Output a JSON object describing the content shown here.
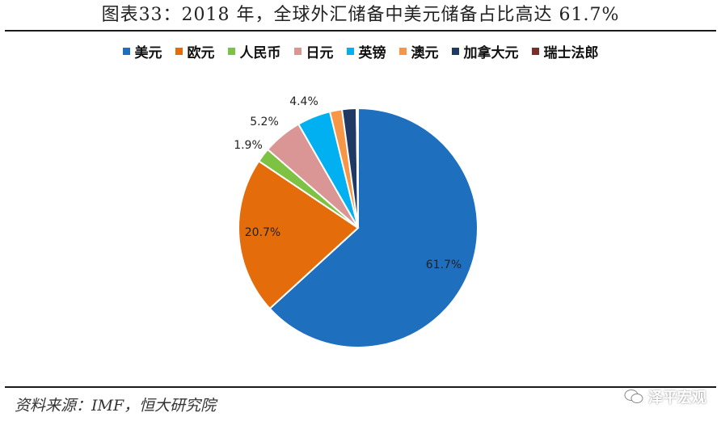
{
  "title": "图表33：2018 年，全球外汇储备中美元储备占比高达 61.7%",
  "source": "资料来源：IMF，恒大研究院",
  "watermark": "泽平宏观",
  "chart_data": {
    "type": "pie",
    "legend_position": "top",
    "slices": [
      {
        "name": "美元",
        "value": 61.7,
        "label": "61.7%",
        "color": "#1f6fbf"
      },
      {
        "name": "欧元",
        "value": 20.7,
        "label": "20.7%",
        "color": "#e46c0a"
      },
      {
        "name": "人民币",
        "value": 1.9,
        "label": "1.9%",
        "color": "#7dc242"
      },
      {
        "name": "日元",
        "value": 5.2,
        "label": "5.2%",
        "color": "#d99694"
      },
      {
        "name": "英镑",
        "value": 4.4,
        "label": "4.4%",
        "color": "#00b0f0"
      },
      {
        "name": "澳元",
        "value": 1.6,
        "label": "",
        "color": "#f79646"
      },
      {
        "name": "加拿大元",
        "value": 1.9,
        "label": "",
        "color": "#1f3864"
      },
      {
        "name": "瑞士法郎",
        "value": 0.2,
        "label": "",
        "color": "#7b2c2c"
      }
    ]
  }
}
